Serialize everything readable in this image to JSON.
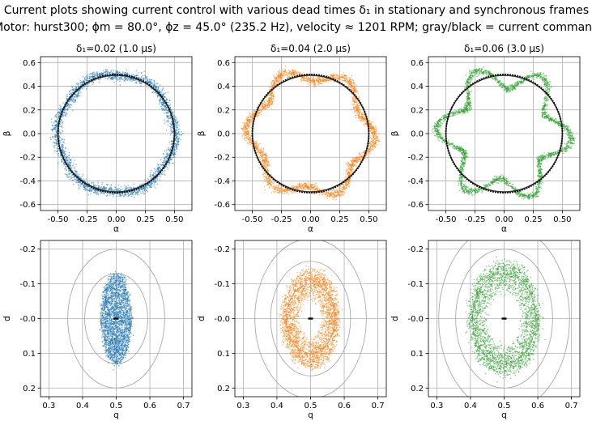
{
  "suptitle_line1": "Current plots showing current control with various dead times δ₁ in stationary and synchronous frames",
  "suptitle_line2": "Motor: hurst300; ϕm = 80.0°, ϕz = 45.0° (235.2 Hz), velocity ≈ 1201 RPM; gray/black = current command",
  "colors": {
    "c0": "#1f77b4",
    "c1": "#ff7f0e",
    "c2": "#2ca02c",
    "command": "#000000",
    "grid": "#b0b0b0"
  },
  "chart_data": [
    {
      "type": "scatter",
      "frame": "stationary",
      "title": "δ₁=0.02 (1.0 µs)",
      "xlabel": "α",
      "ylabel": "β",
      "xlim": [
        -0.65,
        0.65
      ],
      "ylim": [
        -0.65,
        0.65
      ],
      "xticks": [
        "-0.50",
        "-0.25",
        "0.00",
        "0.25",
        "0.50"
      ],
      "xtick_values": [
        -0.5,
        -0.25,
        0,
        0.25,
        0.5
      ],
      "yticks": [
        "0.6",
        "0.4",
        "0.2",
        "0.0",
        "-0.2",
        "-0.4",
        "-0.6"
      ],
      "ytick_values": [
        0.6,
        0.4,
        0.2,
        0,
        -0.2,
        -0.4,
        -0.6
      ],
      "command_radius": 0.5,
      "cloud_mean_radius": 0.5,
      "ripple_amplitude": 0.015,
      "ripple_harmonic": 6,
      "spread": 0.022,
      "color": "c0"
    },
    {
      "type": "scatter",
      "frame": "stationary",
      "title": "δ₁=0.04 (2.0 µs)",
      "xlabel": "α",
      "ylabel": "β",
      "xlim": [
        -0.65,
        0.65
      ],
      "ylim": [
        -0.65,
        0.65
      ],
      "xticks": [
        "-0.50",
        "-0.25",
        "0.00",
        "0.25",
        "0.50"
      ],
      "xtick_values": [
        -0.5,
        -0.25,
        0,
        0.25,
        0.5
      ],
      "yticks": [
        "0.6",
        "0.4",
        "0.2",
        "0.0",
        "-0.2",
        "-0.4",
        "-0.6"
      ],
      "ytick_values": [
        0.6,
        0.4,
        0.2,
        0,
        -0.2,
        -0.4,
        -0.6
      ],
      "command_radius": 0.5,
      "cloud_mean_radius": 0.5,
      "ripple_amplitude": 0.055,
      "ripple_harmonic": 6,
      "spread": 0.018,
      "color": "c1"
    },
    {
      "type": "scatter",
      "frame": "stationary",
      "title": "δ₁=0.06 (3.0 µs)",
      "xlabel": "α",
      "ylabel": "β",
      "xlim": [
        -0.65,
        0.65
      ],
      "ylim": [
        -0.65,
        0.65
      ],
      "xticks": [
        "-0.50",
        "-0.25",
        "0.00",
        "0.25",
        "0.50"
      ],
      "xtick_values": [
        -0.5,
        -0.25,
        0,
        0.25,
        0.5
      ],
      "yticks": [
        "0.6",
        "0.4",
        "0.2",
        "0.0",
        "-0.2",
        "-0.4",
        "-0.6"
      ],
      "ytick_values": [
        0.6,
        0.4,
        0.2,
        0,
        -0.2,
        -0.4,
        -0.6
      ],
      "command_radius": 0.5,
      "cloud_mean_radius": 0.48,
      "ripple_amplitude": 0.1,
      "ripple_harmonic": 6,
      "spread": 0.015,
      "color": "c2"
    },
    {
      "type": "scatter",
      "frame": "synchronous",
      "xlabel": "q",
      "ylabel": "d",
      "xlim": [
        0.275,
        0.725
      ],
      "ylim": [
        0.225,
        -0.225
      ],
      "xticks": [
        "0.3",
        "0.4",
        "0.5",
        "0.6",
        "0.7"
      ],
      "xtick_values": [
        0.3,
        0.4,
        0.5,
        0.6,
        0.7
      ],
      "yticks": [
        "-0.2",
        "-0.1",
        "-0.0",
        "0.1",
        "0.2"
      ],
      "ytick_values": [
        -0.2,
        -0.1,
        0,
        0.1,
        0.2
      ],
      "center": [
        0.5,
        0.0
      ],
      "cloud_q_halfwidth": 0.045,
      "cloud_d_halfwidth": 0.13,
      "hole": 0.0,
      "contour_radii": [
        0.065,
        0.13,
        0.2
      ],
      "color": "c0"
    },
    {
      "type": "scatter",
      "frame": "synchronous",
      "xlabel": "q",
      "ylabel": "d",
      "xlim": [
        0.275,
        0.725
      ],
      "ylim": [
        0.225,
        -0.225
      ],
      "xticks": [
        "0.3",
        "0.4",
        "0.5",
        "0.6",
        "0.7"
      ],
      "xtick_values": [
        0.3,
        0.4,
        0.5,
        0.6,
        0.7
      ],
      "yticks": [
        "-0.2",
        "-0.1",
        "-0.0",
        "0.1",
        "0.2"
      ],
      "ytick_values": [
        -0.2,
        -0.1,
        0,
        0.1,
        0.2
      ],
      "center": [
        0.5,
        0.0
      ],
      "cloud_q_halfwidth": 0.085,
      "cloud_d_halfwidth": 0.14,
      "hole": 0.35,
      "contour_radii": [
        0.1,
        0.165,
        0.23
      ],
      "color": "c1"
    },
    {
      "type": "scatter",
      "frame": "synchronous",
      "xlabel": "q",
      "ylabel": "d",
      "xlim": [
        0.275,
        0.725
      ],
      "ylim": [
        0.225,
        -0.225
      ],
      "xticks": [
        "0.3",
        "0.4",
        "0.5",
        "0.6",
        "0.7"
      ],
      "xtick_values": [
        0.3,
        0.4,
        0.5,
        0.6,
        0.7
      ],
      "yticks": [
        "-0.2",
        "-0.1",
        "-0.0",
        "0.1",
        "0.2"
      ],
      "ytick_values": [
        -0.2,
        -0.1,
        0,
        0.1,
        0.2
      ],
      "center": [
        0.5,
        0.0
      ],
      "cloud_q_halfwidth": 0.105,
      "cloud_d_halfwidth": 0.16,
      "hole": 0.45,
      "contour_radii": [
        0.13,
        0.2,
        0.27
      ],
      "color": "c2"
    }
  ]
}
